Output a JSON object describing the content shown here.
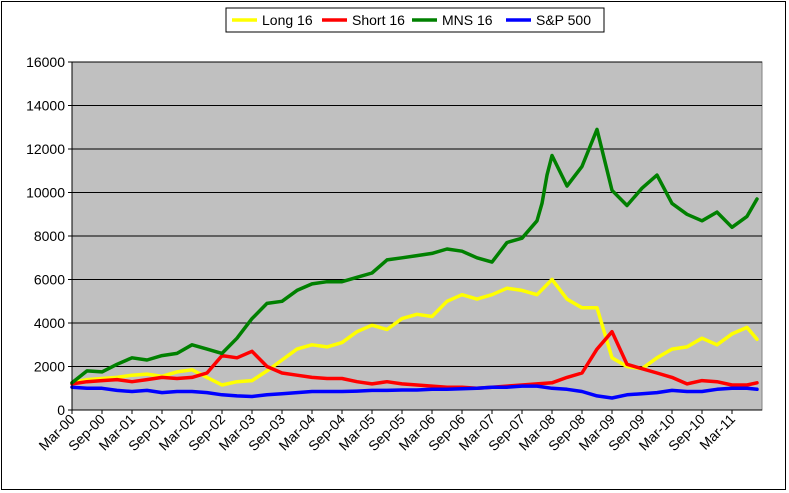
{
  "chart_data": {
    "type": "line",
    "title": "",
    "xlabel": "",
    "ylabel": "",
    "ylim": [
      0,
      16000
    ],
    "yticks": [
      "0",
      "2000",
      "4000",
      "6000",
      "8000",
      "10000",
      "12000",
      "14000",
      "16000"
    ],
    "xticks": [
      "Mar-00",
      "Sep-00",
      "Mar-01",
      "Sep-01",
      "Mar-02",
      "Sep-02",
      "Mar-03",
      "Sep-03",
      "Mar-04",
      "Sep-04",
      "Mar-05",
      "Sep-05",
      "Mar-06",
      "Sep-06",
      "Mar-07",
      "Sep-07",
      "Mar-08",
      "Sep-08",
      "Mar-09",
      "Sep-09",
      "Mar-10",
      "Sep-10",
      "Mar-11"
    ],
    "grid": "horizontal",
    "legend_position": "top",
    "plot_background": "#c0c0c0",
    "series": [
      {
        "name": "Long 16",
        "color": "#ffff00",
        "x": [
          "2000-03",
          "2000-06",
          "2000-09",
          "2000-12",
          "2001-03",
          "2001-06",
          "2001-09",
          "2001-12",
          "2002-03",
          "2002-06",
          "2002-09",
          "2002-12",
          "2003-03",
          "2003-06",
          "2003-09",
          "2003-12",
          "2004-03",
          "2004-06",
          "2004-09",
          "2004-12",
          "2005-03",
          "2005-06",
          "2005-09",
          "2005-12",
          "2006-03",
          "2006-06",
          "2006-09",
          "2006-12",
          "2007-03",
          "2007-06",
          "2007-09",
          "2007-12",
          "2008-03",
          "2008-06",
          "2008-09",
          "2008-12",
          "2009-03",
          "2009-06",
          "2009-09",
          "2009-12",
          "2010-03",
          "2010-06",
          "2010-09",
          "2010-12",
          "2011-03",
          "2011-06",
          "2011-08"
        ],
        "values": [
          1250,
          1400,
          1450,
          1500,
          1600,
          1650,
          1550,
          1750,
          1850,
          1500,
          1150,
          1300,
          1350,
          1800,
          2300,
          2800,
          3000,
          2900,
          3100,
          3600,
          3900,
          3700,
          4200,
          4400,
          4300,
          5000,
          5300,
          5100,
          5300,
          5600,
          5500,
          5300,
          6000,
          5100,
          4700,
          4700,
          2400,
          2000,
          1900,
          2400,
          2800,
          2900,
          3300,
          3000,
          3500,
          3800,
          3250
        ]
      },
      {
        "name": "Short 16",
        "color": "#ff0000",
        "x": [
          "2000-03",
          "2000-06",
          "2000-09",
          "2000-12",
          "2001-03",
          "2001-06",
          "2001-09",
          "2001-12",
          "2002-03",
          "2002-06",
          "2002-09",
          "2002-12",
          "2003-03",
          "2003-06",
          "2003-09",
          "2003-12",
          "2004-03",
          "2004-06",
          "2004-09",
          "2004-12",
          "2005-03",
          "2005-06",
          "2005-09",
          "2005-12",
          "2006-03",
          "2006-06",
          "2006-09",
          "2006-12",
          "2007-03",
          "2007-06",
          "2007-09",
          "2007-12",
          "2008-03",
          "2008-06",
          "2008-09",
          "2008-12",
          "2009-03",
          "2009-06",
          "2009-09",
          "2009-12",
          "2010-03",
          "2010-06",
          "2010-09",
          "2010-12",
          "2011-03",
          "2011-06",
          "2011-08"
        ],
        "values": [
          1200,
          1300,
          1350,
          1400,
          1300,
          1400,
          1500,
          1450,
          1500,
          1700,
          2500,
          2400,
          2700,
          2000,
          1700,
          1600,
          1500,
          1450,
          1450,
          1300,
          1200,
          1300,
          1200,
          1150,
          1100,
          1050,
          1050,
          1000,
          1050,
          1100,
          1150,
          1200,
          1250,
          1500,
          1700,
          2800,
          3600,
          2100,
          1900,
          1700,
          1500,
          1200,
          1350,
          1300,
          1150,
          1150,
          1250
        ]
      },
      {
        "name": "MNS 16",
        "color": "#008000",
        "x": [
          "2000-03",
          "2000-06",
          "2000-09",
          "2000-12",
          "2001-03",
          "2001-06",
          "2001-09",
          "2001-12",
          "2002-03",
          "2002-06",
          "2002-09",
          "2002-12",
          "2003-03",
          "2003-06",
          "2003-09",
          "2003-12",
          "2004-03",
          "2004-06",
          "2004-09",
          "2004-12",
          "2005-03",
          "2005-06",
          "2005-09",
          "2005-12",
          "2006-03",
          "2006-06",
          "2006-09",
          "2006-12",
          "2007-03",
          "2007-06",
          "2007-09",
          "2007-12",
          "2008-01",
          "2008-02",
          "2008-03",
          "2008-06",
          "2008-09",
          "2008-12",
          "2009-03",
          "2009-06",
          "2009-09",
          "2009-12",
          "2010-03",
          "2010-06",
          "2010-09",
          "2010-12",
          "2011-03",
          "2011-06",
          "2011-08"
        ],
        "values": [
          1250,
          1800,
          1750,
          2100,
          2400,
          2300,
          2500,
          2600,
          3000,
          2800,
          2600,
          3300,
          4200,
          4900,
          5000,
          5500,
          5800,
          5900,
          5900,
          6100,
          6300,
          6900,
          7000,
          7100,
          7200,
          7400,
          7300,
          7000,
          6800,
          7700,
          7900,
          8700,
          9500,
          10800,
          11700,
          10300,
          11200,
          12900,
          10100,
          9400,
          10200,
          10800,
          9500,
          9000,
          8700,
          9100,
          8400,
          8900,
          9700
        ]
      },
      {
        "name": "S&P 500",
        "color": "#0000ff",
        "x": [
          "2000-03",
          "2000-06",
          "2000-09",
          "2000-12",
          "2001-03",
          "2001-06",
          "2001-09",
          "2001-12",
          "2002-03",
          "2002-06",
          "2002-09",
          "2002-12",
          "2003-03",
          "2003-06",
          "2003-09",
          "2003-12",
          "2004-03",
          "2004-06",
          "2004-09",
          "2004-12",
          "2005-03",
          "2005-06",
          "2005-09",
          "2005-12",
          "2006-03",
          "2006-06",
          "2006-09",
          "2006-12",
          "2007-03",
          "2007-06",
          "2007-09",
          "2007-12",
          "2008-03",
          "2008-06",
          "2008-09",
          "2008-12",
          "2009-03",
          "2009-06",
          "2009-09",
          "2009-12",
          "2010-03",
          "2010-06",
          "2010-09",
          "2010-12",
          "2011-03",
          "2011-06",
          "2011-08"
        ],
        "values": [
          1050,
          1000,
          1000,
          900,
          850,
          900,
          800,
          850,
          850,
          800,
          700,
          650,
          620,
          700,
          750,
          800,
          850,
          850,
          850,
          870,
          900,
          900,
          920,
          920,
          950,
          950,
          980,
          1000,
          1050,
          1050,
          1100,
          1100,
          1000,
          950,
          850,
          650,
          550,
          700,
          750,
          800,
          900,
          850,
          850,
          950,
          1000,
          1000,
          950
        ]
      }
    ]
  }
}
